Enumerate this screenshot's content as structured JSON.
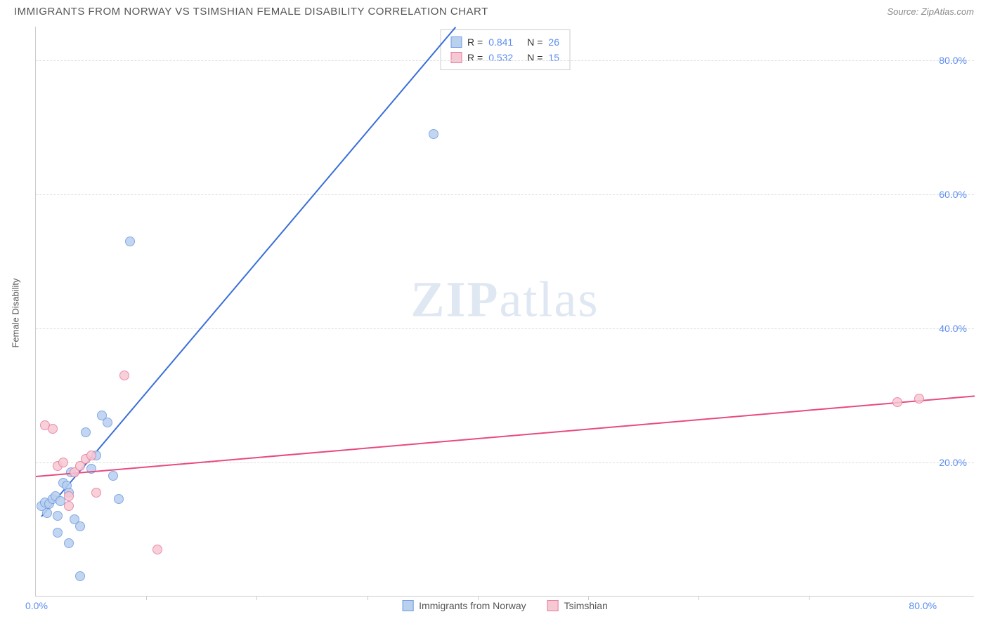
{
  "title": "IMMIGRANTS FROM NORWAY VS TSIMSHIAN FEMALE DISABILITY CORRELATION CHART",
  "source": "Source: ZipAtlas.com",
  "watermark": {
    "bold": "ZIP",
    "light": "atlas"
  },
  "y_axis_label": "Female Disability",
  "chart": {
    "type": "scatter",
    "xlim": [
      0,
      85
    ],
    "ylim": [
      0,
      85
    ],
    "x_ticks": [
      {
        "value": 0,
        "label": "0.0%"
      },
      {
        "value": 80,
        "label": "80.0%"
      }
    ],
    "x_minor_ticks": [
      10,
      20,
      30,
      40,
      50,
      60,
      70
    ],
    "y_ticks": [
      {
        "value": 20,
        "label": "20.0%"
      },
      {
        "value": 40,
        "label": "40.0%"
      },
      {
        "value": 60,
        "label": "60.0%"
      },
      {
        "value": 80,
        "label": "80.0%"
      }
    ],
    "grid_color": "#dddddd",
    "background_color": "#ffffff",
    "series": [
      {
        "name": "Immigrants from Norway",
        "fill_color": "#b9d0ef",
        "stroke_color": "#6d9be0",
        "line_color": "#3a6fd8",
        "marker_radius": 7,
        "r_value": "0.841",
        "n_value": "26",
        "points": [
          [
            0.5,
            13.5
          ],
          [
            0.8,
            14.0
          ],
          [
            1.0,
            12.5
          ],
          [
            1.2,
            13.8
          ],
          [
            1.5,
            14.5
          ],
          [
            1.8,
            15.0
          ],
          [
            2.0,
            12.0
          ],
          [
            2.2,
            14.2
          ],
          [
            2.5,
            17.0
          ],
          [
            2.8,
            16.5
          ],
          [
            3.0,
            15.5
          ],
          [
            3.2,
            18.5
          ],
          [
            3.5,
            11.5
          ],
          [
            4.0,
            10.5
          ],
          [
            4.5,
            24.5
          ],
          [
            5.0,
            19.0
          ],
          [
            5.5,
            21.0
          ],
          [
            6.0,
            27.0
          ],
          [
            6.5,
            26.0
          ],
          [
            7.0,
            18.0
          ],
          [
            7.5,
            14.5
          ],
          [
            3.0,
            8.0
          ],
          [
            4.0,
            3.0
          ],
          [
            8.5,
            53.0
          ],
          [
            36.0,
            69.0
          ],
          [
            2.0,
            9.5
          ]
        ],
        "trend": {
          "x1": 0.5,
          "y1": 12.0,
          "x2": 38.0,
          "y2": 85.0
        }
      },
      {
        "name": "Tsimshian",
        "fill_color": "#f6c8d4",
        "stroke_color": "#e77a9a",
        "line_color": "#e84a7f",
        "marker_radius": 7,
        "r_value": "0.532",
        "n_value": "15",
        "points": [
          [
            0.8,
            25.5
          ],
          [
            1.5,
            25.0
          ],
          [
            2.0,
            19.5
          ],
          [
            2.5,
            20.0
          ],
          [
            3.0,
            15.0
          ],
          [
            3.5,
            18.5
          ],
          [
            4.0,
            19.5
          ],
          [
            4.5,
            20.5
          ],
          [
            5.0,
            21.0
          ],
          [
            5.5,
            15.5
          ],
          [
            8.0,
            33.0
          ],
          [
            11.0,
            7.0
          ],
          [
            78.0,
            29.0
          ],
          [
            80.0,
            29.5
          ],
          [
            3.0,
            13.5
          ]
        ],
        "trend": {
          "x1": 0.0,
          "y1": 18.0,
          "x2": 85.0,
          "y2": 30.0
        }
      }
    ]
  },
  "legend_top": {
    "r_label": "R =",
    "n_label": "N ="
  }
}
